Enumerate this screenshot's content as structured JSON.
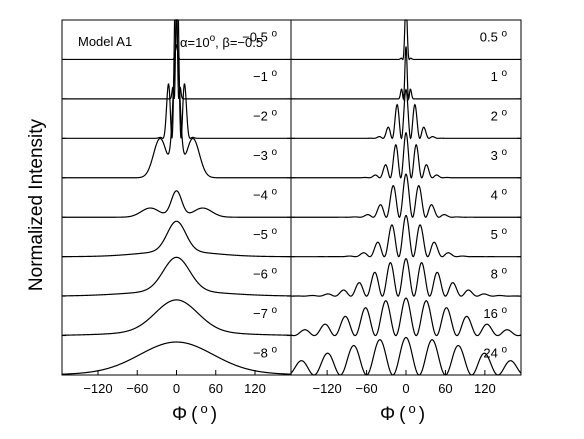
{
  "chart_data": {
    "type": "line",
    "ylabel": "Normalized Intensity",
    "xlabel_symbol": "Φ",
    "xlabel_unit_open": "(",
    "xlabel_unit": "o",
    "xlabel_unit_close": ")",
    "xlim": [
      -175,
      175
    ],
    "x_ticks": [
      -120,
      -60,
      0,
      60,
      120
    ],
    "x_tick_labels": [
      "−120",
      "−60",
      "0",
      "60",
      "120"
    ],
    "panels": [
      {
        "id": "left",
        "title": "Model A1",
        "header_prefix": "α=10",
        "header_sup": "o",
        "header_suffix": ", β=−0.5",
        "series": [
          {
            "label": "−0.5",
            "model": "multi",
            "scale": 1.6,
            "sigma": 1.5,
            "period": 5
          },
          {
            "label": "−1",
            "model": "multi",
            "scale": 2.7,
            "sigma": 3,
            "period": 7
          },
          {
            "label": "−2",
            "model": "multi",
            "scale": 5.5,
            "sigma": 8,
            "period": 14
          },
          {
            "label": "−3",
            "model": "ring",
            "scale": 3.5,
            "sigma": 5,
            "ringR": 25,
            "ringW": 10,
            "ringA": 0.3
          },
          {
            "label": "−4",
            "model": "ring",
            "scale": 0.7,
            "sigma": 8,
            "ringR": 40,
            "ringW": 14,
            "ringA": 0.35
          },
          {
            "label": "−5",
            "model": "gauss",
            "scale": 0.8,
            "sigma": 14,
            "tailW": 55,
            "tailA": 0.18
          },
          {
            "label": "−6",
            "model": "gauss",
            "scale": 0.9,
            "sigma": 20,
            "tailW": 70,
            "tailA": 0.15
          },
          {
            "label": "−7",
            "model": "gauss",
            "scale": 0.85,
            "sigma": 32,
            "tailW": 80,
            "tailA": 0.12
          },
          {
            "label": "−8",
            "model": "gauss",
            "scale": 0.8,
            "sigma": 55,
            "tailW": 100,
            "tailA": 0.1
          }
        ]
      },
      {
        "id": "right",
        "series": [
          {
            "label": "0.5",
            "model": "multi",
            "scale": 1.5,
            "sigma": 3,
            "period": 10
          },
          {
            "label": "1",
            "model": "multi",
            "scale": 1.4,
            "sigma": 4,
            "period": 8
          },
          {
            "label": "2",
            "model": "multi",
            "scale": 1.3,
            "sigma": 16,
            "period": 14
          },
          {
            "label": "3",
            "model": "multi",
            "scale": 1.2,
            "sigma": 20,
            "period": 16
          },
          {
            "label": "4",
            "model": "multi",
            "scale": 1.15,
            "sigma": 25,
            "period": 20
          },
          {
            "label": "5",
            "model": "multi",
            "scale": 1.1,
            "sigma": 30,
            "period": 22
          },
          {
            "label": "8",
            "model": "multi",
            "scale": 1.0,
            "sigma": 50,
            "period": 24
          },
          {
            "label": "16",
            "model": "multi",
            "scale": 1.0,
            "sigma": 80,
            "period": 31
          },
          {
            "label": "24",
            "model": "multi",
            "scale": 1.0,
            "sigma": 115,
            "period": 40
          }
        ]
      }
    ],
    "degree_sup": "o",
    "grid": false
  }
}
